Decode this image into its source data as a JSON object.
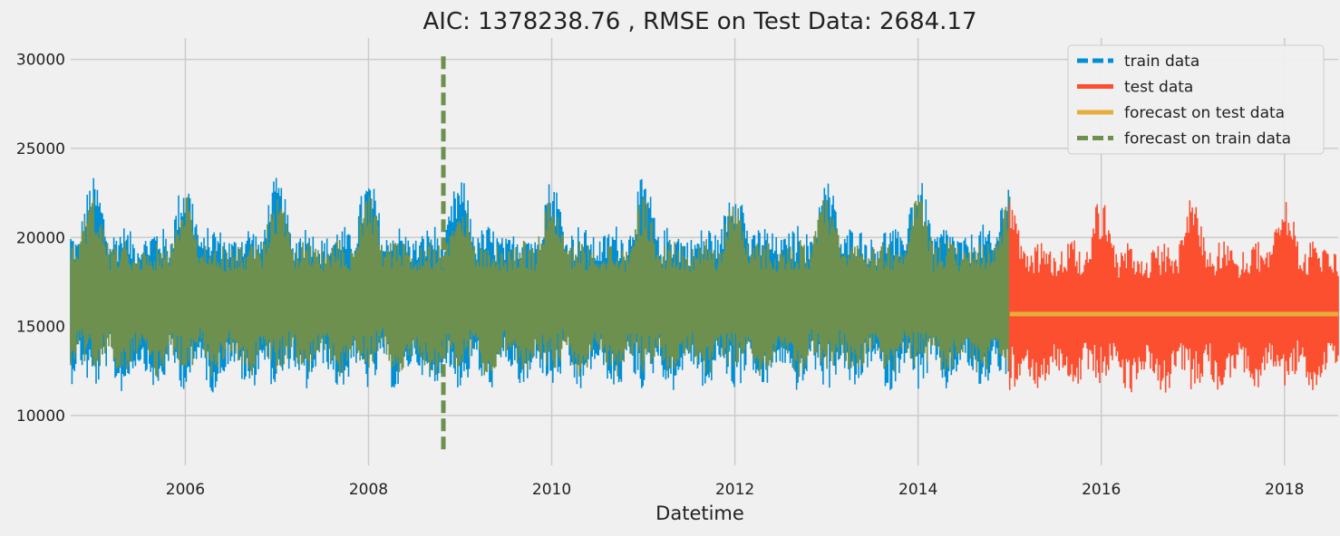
{
  "chart_data": {
    "type": "line",
    "title": "AIC: 1378238.76 , RMSE on Test Data: 2684.17",
    "xlabel": "Datetime",
    "ylabel": "",
    "xlim": [
      "2004-10-01",
      "2018-08-03"
    ],
    "ylim": [
      7200,
      31200
    ],
    "x_ticks": [
      "2006",
      "2008",
      "2010",
      "2012",
      "2014",
      "2016",
      "2018"
    ],
    "y_ticks": [
      "10000",
      "15000",
      "20000",
      "25000",
      "30000"
    ],
    "grid": true,
    "legend_position": "top-right",
    "series": [
      {
        "name": "train data",
        "style": "dashed",
        "color": "#008fd5",
        "x_range": [
          "2004-10-01",
          "2015-01-01"
        ],
        "approx_envelope": {
          "typical_min": 10500,
          "typical_max": 22500,
          "min": 9800,
          "max": 25200
        }
      },
      {
        "name": "test data",
        "style": "solid",
        "color": "#fc4f30",
        "x_range": [
          "2015-01-01",
          "2018-08-03"
        ],
        "approx_envelope": {
          "typical_min": 10500,
          "typical_max": 21500,
          "min": 9500,
          "max": 24700
        }
      },
      {
        "name": "forecast on test data",
        "style": "solid",
        "color": "#e5ae38",
        "x_range": [
          "2015-01-01",
          "2018-08-03"
        ],
        "constant_value": 15700
      },
      {
        "name": "forecast on train data",
        "style": "dashed",
        "color": "#6d904f",
        "x_range": [
          "2004-10-01",
          "2015-01-01"
        ],
        "approx_envelope": {
          "typical_min": 11000,
          "typical_max": 22000,
          "min": 8100,
          "max": 30200
        },
        "spike_date": "2008-10-26"
      }
    ]
  }
}
